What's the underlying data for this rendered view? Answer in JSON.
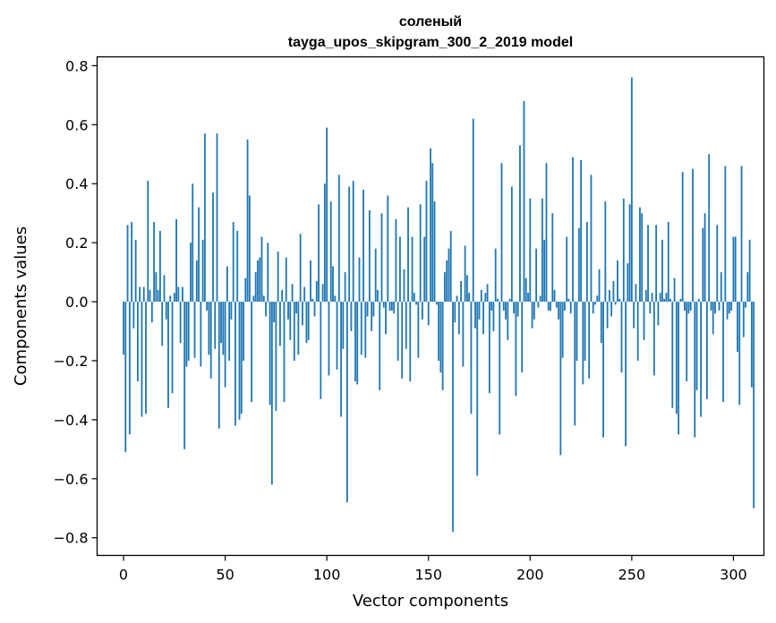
{
  "chart_data": {
    "type": "bar",
    "title": "соленый",
    "subtitle": "tayga_upos_skipgram_300_2_2019 model",
    "xlabel": "Vector components",
    "ylabel": "Components values",
    "xlim": [
      -13,
      315
    ],
    "ylim": [
      -0.86,
      0.83
    ],
    "xticks": [
      0,
      50,
      100,
      150,
      200,
      250,
      300
    ],
    "yticks": [
      0.8,
      0.6,
      0.4,
      0.2,
      0.0,
      -0.2,
      -0.4,
      -0.6,
      -0.8
    ],
    "ytick_labels": [
      "0.8",
      "0.6",
      "0.4",
      "0.2",
      "0.0",
      "−0.2",
      "−0.4",
      "−0.6",
      "−0.8"
    ],
    "bar_color": "#1f77b4",
    "grid": false,
    "values": [
      -0.18,
      -0.51,
      0.26,
      -0.45,
      0.27,
      -0.09,
      0.21,
      -0.27,
      0.05,
      -0.39,
      0.05,
      -0.38,
      0.41,
      0.04,
      -0.07,
      0.27,
      0.1,
      0.04,
      0.24,
      -0.15,
      0.09,
      -0.06,
      -0.36,
      0.02,
      -0.31,
      0.03,
      0.28,
      0.05,
      -0.14,
      0.05,
      -0.5,
      -0.22,
      -0.2,
      0.2,
      0.4,
      -0.19,
      0.14,
      0.32,
      -0.22,
      0.21,
      0.57,
      -0.03,
      -0.18,
      -0.26,
      0.37,
      -0.16,
      0.57,
      -0.43,
      -0.14,
      -0.18,
      -0.29,
      0.12,
      -0.2,
      -0.06,
      0.27,
      -0.42,
      0.24,
      -0.4,
      -0.38,
      -0.2,
      0.08,
      0.55,
      0.36,
      -0.34,
      0.02,
      0.1,
      0.14,
      0.15,
      0.22,
      0.02,
      -0.05,
      0.2,
      -0.35,
      -0.62,
      -0.07,
      -0.37,
      0.17,
      -0.15,
      0.04,
      -0.34,
      0.15,
      -0.06,
      -0.13,
      0.06,
      -0.2,
      -0.04,
      -0.18,
      0.23,
      -0.08,
      0.05,
      -0.14,
      -0.13,
      0.14,
      0.01,
      -0.05,
      0.07,
      0.33,
      -0.33,
      0.06,
      0.4,
      0.59,
      -0.25,
      0.34,
      0.12,
      0.02,
      -0.23,
      0.43,
      -0.39,
      -0.16,
      0.1,
      -0.68,
      0.39,
      -0.1,
      0.41,
      -0.27,
      -0.28,
      0.15,
      -0.18,
      0.38,
      -0.19,
      -0.05,
      0.31,
      -0.1,
      -0.05,
      0.18,
      0.04,
      -0.3,
      0.3,
      -0.02,
      -0.11,
      0.36,
      -0.03,
      -0.03,
      -0.04,
      0.28,
      -0.2,
      0.22,
      -0.26,
      0.11,
      -0.16,
      0.32,
      -0.27,
      0.22,
      0.03,
      -0.01,
      -0.19,
      0.33,
      -0.06,
      0.22,
      0.41,
      -0.08,
      0.52,
      0.47,
      0.34,
      -0.01,
      -0.2,
      -0.24,
      -0.3,
      0.1,
      0.14,
      0.18,
      0.24,
      -0.78,
      -0.07,
      0.02,
      -0.11,
      0.07,
      -0.22,
      0.19,
      0.09,
      0.03,
      -0.38,
      0.62,
      -0.09,
      -0.59,
      -0.06,
      0.04,
      -0.11,
      0.03,
      0.06,
      -0.31,
      -0.03,
      -0.1,
      0.18,
      0.01,
      -0.45,
      0.47,
      -0.03,
      -0.06,
      -0.13,
      0.01,
      0.39,
      -0.04,
      -0.32,
      -0.05,
      0.53,
      -0.24,
      0.68,
      0.08,
      0.03,
      0.35,
      -0.09,
      -0.06,
      0.18,
      -0.02,
      0.02,
      0.35,
      0.21,
      0.47,
      -0.03,
      -0.03,
      0.3,
      0.04,
      -0.02,
      -0.06,
      -0.52,
      -0.19,
      -0.03,
      0.22,
      0.01,
      -0.04,
      0.49,
      -0.42,
      -0.2,
      0.25,
      0.48,
      -0.28,
      -0.2,
      0.27,
      -0.26,
      0.43,
      -0.04,
      -0.01,
      0.02,
      0.11,
      -0.14,
      -0.46,
      0.34,
      -0.09,
      0.04,
      -0.05,
      0.07,
      -0.01,
      0.14,
      0.01,
      -0.24,
      0.35,
      -0.49,
      0.13,
      0.33,
      0.76,
      -0.09,
      0.06,
      -0.2,
      0.32,
      0.3,
      -0.13,
      0.04,
      0.26,
      -0.04,
      0.03,
      -0.25,
      0.26,
      -0.08,
      0.03,
      0.21,
      0.01,
      0.03,
      0.27,
      0.01,
      -0.36,
      0.08,
      -0.38,
      -0.45,
      0.01,
      0.44,
      -0.03,
      -0.27,
      -0.04,
      -0.03,
      0.45,
      -0.46,
      -0.3,
      0.01,
      -0.39,
      0.25,
      0.3,
      -0.33,
      0.5,
      -0.03,
      -0.11,
      -0.04,
      0.26,
      -0.03,
      0.1,
      -0.34,
      0.46,
      -0.06,
      -0.04,
      -0.03,
      0.22,
      0.22,
      -0.17,
      -0.35,
      0.46,
      -0.12,
      -0.02,
      0.1,
      0.21,
      -0.29,
      -0.7
    ]
  }
}
